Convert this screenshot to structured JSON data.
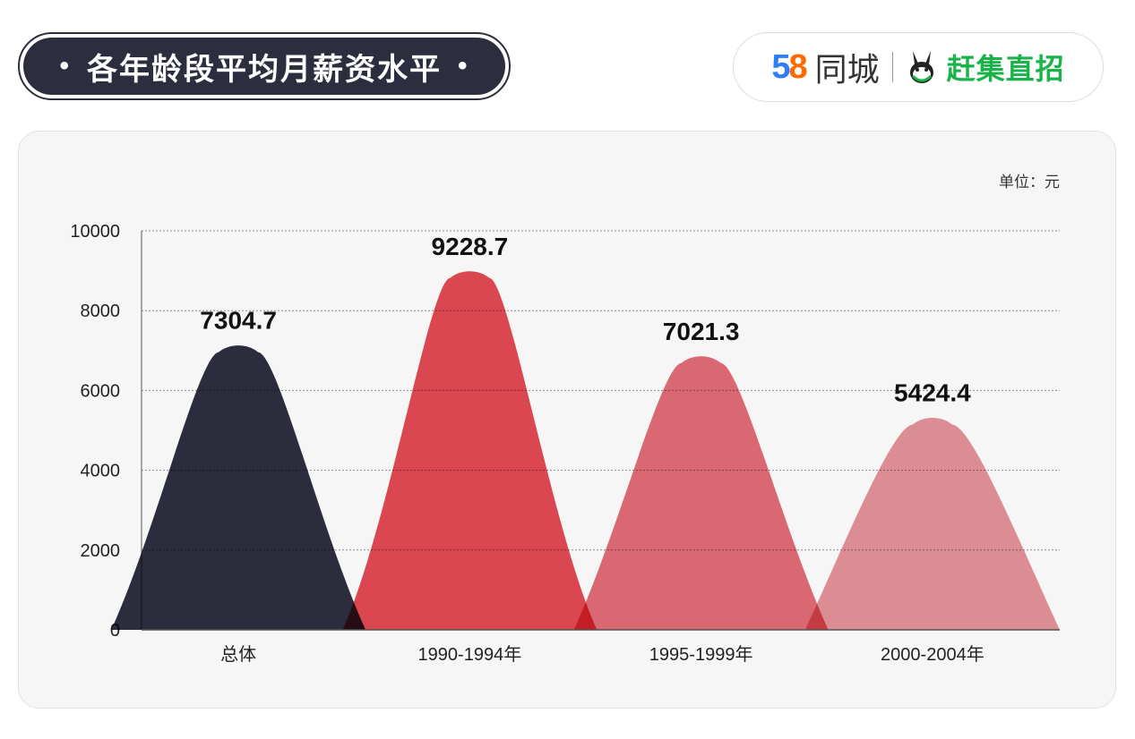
{
  "header": {
    "title": "各年龄段平均月薪资水平",
    "title_dot": "•"
  },
  "logo": {
    "brand_num": [
      "5",
      "8"
    ],
    "brand_text": "同城",
    "partner_text": "赶集直招",
    "colors": {
      "five": "#2d7ff9",
      "eight": "#ff6a00",
      "partner": "#19b34a"
    }
  },
  "chart_data": {
    "type": "area",
    "unit_label": "单位：元",
    "categories": [
      "总体",
      "1990-1994年",
      "1995-1999年",
      "2000-2004年"
    ],
    "values": [
      7304.7,
      9228.7,
      7021.3,
      5424.4
    ],
    "value_labels": [
      "7304.7",
      "9228.7",
      "7021.3",
      "5424.4"
    ],
    "colors": [
      "#2c2e3f",
      "#e03a44",
      "#e0606a",
      "#e2898f"
    ],
    "ylim": [
      0,
      10000
    ],
    "yticks": [
      0,
      2000,
      4000,
      6000,
      8000,
      10000
    ],
    "grid": true
  }
}
